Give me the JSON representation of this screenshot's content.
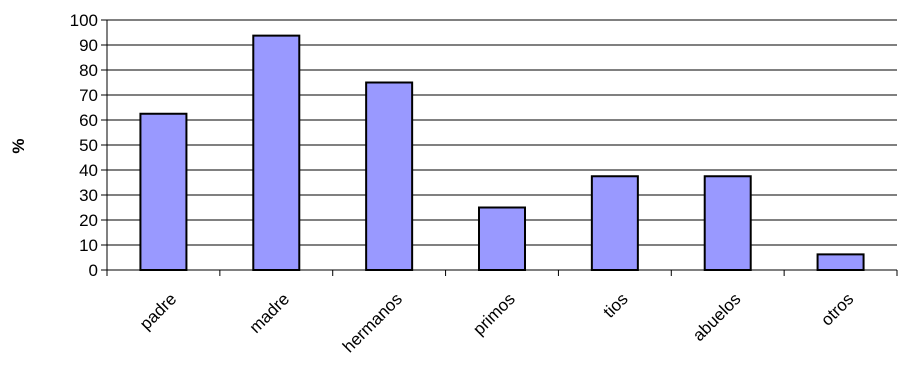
{
  "chart_data": {
    "type": "bar",
    "categories": [
      "padre",
      "madre",
      "hermanos",
      "primos",
      "tios",
      "abuelos",
      "otros"
    ],
    "values": [
      62.5,
      93.75,
      75,
      25,
      37.5,
      37.5,
      6.25
    ],
    "title": "",
    "xlabel": "",
    "ylabel": "%",
    "ylim": [
      0,
      100
    ],
    "yticks": [
      0,
      10,
      20,
      30,
      40,
      50,
      60,
      70,
      80,
      90,
      100
    ],
    "grid": true,
    "legend": "none",
    "bar_color": "#9999ff"
  }
}
